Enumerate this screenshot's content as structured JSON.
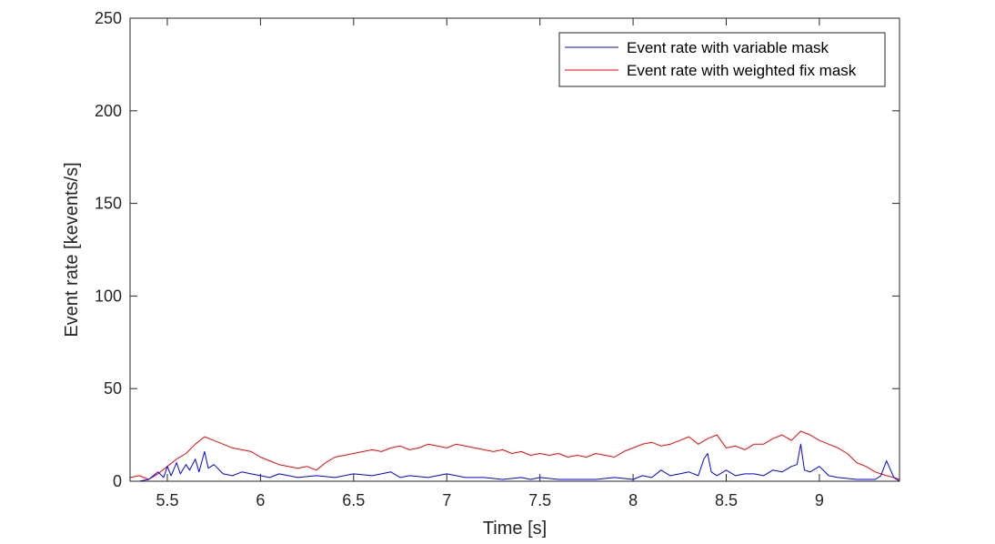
{
  "chart_data": {
    "type": "line",
    "title": "",
    "xlabel": "Time [s]",
    "ylabel": "Event rate [kevents/s]",
    "xlim": [
      5.3,
      9.43
    ],
    "ylim": [
      0,
      250
    ],
    "xticks": [
      5.5,
      6,
      6.5,
      7,
      7.5,
      8,
      8.5,
      9
    ],
    "xtick_labels": [
      "5.5",
      "6",
      "6.5",
      "7",
      "7.5",
      "8",
      "8.5",
      "9"
    ],
    "yticks": [
      0,
      50,
      100,
      150,
      200,
      250
    ],
    "ytick_labels": [
      "0",
      "50",
      "100",
      "150",
      "200",
      "250"
    ],
    "grid": false,
    "legend_position": "top-right",
    "series": [
      {
        "name": "Event rate with variable mask",
        "color": "#0000ff",
        "x": [
          5.3,
          5.35,
          5.4,
          5.45,
          5.48,
          5.5,
          5.52,
          5.55,
          5.57,
          5.6,
          5.62,
          5.65,
          5.67,
          5.7,
          5.72,
          5.75,
          5.8,
          5.85,
          5.9,
          5.95,
          6.0,
          6.05,
          6.1,
          6.2,
          6.3,
          6.4,
          6.5,
          6.6,
          6.7,
          6.75,
          6.8,
          6.9,
          7.0,
          7.05,
          7.1,
          7.2,
          7.3,
          7.4,
          7.45,
          7.5,
          7.6,
          7.7,
          7.8,
          7.9,
          8.0,
          8.05,
          8.1,
          8.15,
          8.2,
          8.25,
          8.3,
          8.35,
          8.38,
          8.4,
          8.42,
          8.45,
          8.5,
          8.55,
          8.6,
          8.65,
          8.7,
          8.75,
          8.8,
          8.85,
          8.88,
          8.9,
          8.92,
          8.95,
          9.0,
          9.05,
          9.1,
          9.2,
          9.3,
          9.33,
          9.36,
          9.4,
          9.43
        ],
        "y": [
          0,
          0,
          1,
          5,
          2,
          8,
          3,
          10,
          4,
          9,
          6,
          12,
          5,
          16,
          7,
          9,
          4,
          3,
          5,
          4,
          3,
          2,
          4,
          2,
          3,
          2,
          4,
          3,
          5,
          2,
          3,
          2,
          4,
          3,
          2,
          2,
          1,
          2,
          1,
          2,
          1,
          1,
          1,
          2,
          1,
          3,
          2,
          6,
          3,
          4,
          5,
          3,
          12,
          15,
          5,
          3,
          6,
          3,
          4,
          4,
          3,
          6,
          5,
          8,
          9,
          20,
          6,
          5,
          8,
          3,
          2,
          1,
          1,
          3,
          11,
          2,
          0
        ]
      },
      {
        "name": "Event rate with weighted fix mask",
        "color": "#ff0000",
        "x": [
          5.3,
          5.35,
          5.4,
          5.45,
          5.5,
          5.55,
          5.6,
          5.65,
          5.7,
          5.75,
          5.8,
          5.85,
          5.9,
          5.95,
          6.0,
          6.05,
          6.1,
          6.15,
          6.2,
          6.25,
          6.3,
          6.35,
          6.4,
          6.45,
          6.5,
          6.55,
          6.6,
          6.65,
          6.7,
          6.75,
          6.8,
          6.85,
          6.9,
          6.95,
          7.0,
          7.05,
          7.1,
          7.15,
          7.2,
          7.25,
          7.3,
          7.35,
          7.4,
          7.45,
          7.5,
          7.55,
          7.6,
          7.65,
          7.7,
          7.75,
          7.8,
          7.85,
          7.9,
          7.95,
          8.0,
          8.05,
          8.1,
          8.15,
          8.2,
          8.25,
          8.3,
          8.35,
          8.4,
          8.45,
          8.5,
          8.55,
          8.6,
          8.65,
          8.7,
          8.75,
          8.8,
          8.85,
          8.9,
          8.95,
          9.0,
          9.05,
          9.1,
          9.15,
          9.2,
          9.25,
          9.3,
          9.33,
          9.36,
          9.4,
          9.43
        ],
        "y": [
          2,
          3,
          1,
          4,
          8,
          12,
          15,
          20,
          24,
          22,
          20,
          18,
          17,
          16,
          13,
          11,
          9,
          8,
          7,
          8,
          6,
          10,
          13,
          14,
          15,
          16,
          17,
          16,
          18,
          19,
          17,
          18,
          20,
          19,
          18,
          20,
          19,
          18,
          17,
          16,
          17,
          15,
          16,
          14,
          15,
          14,
          15,
          13,
          14,
          13,
          15,
          14,
          13,
          16,
          18,
          20,
          21,
          19,
          20,
          22,
          24,
          20,
          23,
          25,
          18,
          19,
          17,
          20,
          20,
          23,
          25,
          22,
          27,
          25,
          22,
          20,
          18,
          15,
          10,
          8,
          5,
          4,
          3,
          2,
          1
        ]
      }
    ]
  }
}
